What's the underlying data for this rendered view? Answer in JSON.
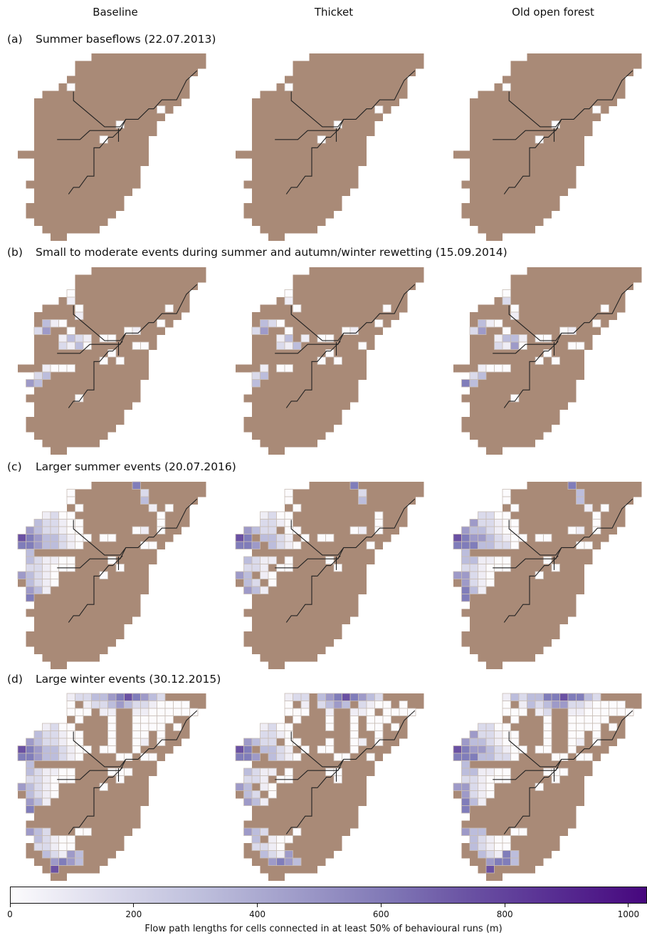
{
  "columns": [
    "Baseline",
    "Thicket",
    "Old open forest"
  ],
  "rows": [
    {
      "label": "(a)",
      "title": "Summer baseflows (22.07.2013)"
    },
    {
      "label": "(b)",
      "title": "Small to moderate events during summer and autumn/winter rewetting (15.09.2014)"
    },
    {
      "label": "(c)",
      "title": "Larger summer events (20.07.2016)"
    },
    {
      "label": "(d)",
      "title": "Large winter events (30.12.2015)"
    }
  ],
  "colorbar": {
    "label": "Flow path lengths for cells connected in at least 50% of behavioural runs (m)",
    "min": 0,
    "max": 1030,
    "ticks": [
      0,
      200,
      400,
      600,
      800,
      1000
    ]
  },
  "colors": {
    "catchment": "#a98a77",
    "catchment_edge": "#c8bdb6",
    "stream": "#222222",
    "scale_low": "#fcfbfd",
    "scale_high": "#47077e"
  }
}
